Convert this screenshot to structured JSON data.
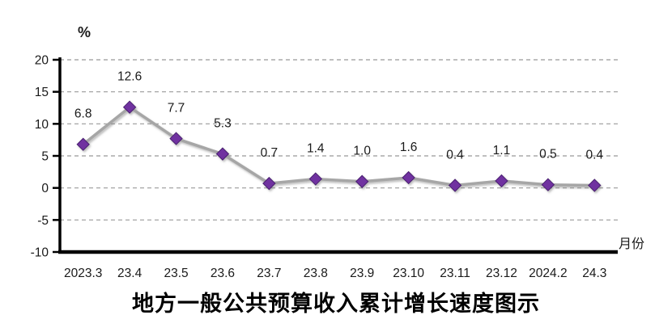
{
  "chart_data": {
    "type": "line",
    "title": "地方一般公共预算收入累计增长速度图示",
    "unit_label": "%",
    "xlabel": "月份",
    "categories": [
      "2023.3",
      "23.4",
      "23.5",
      "23.6",
      "23.7",
      "23.8",
      "23.9",
      "23.10",
      "23.11",
      "23.12",
      "2024.2",
      "24.3"
    ],
    "values": [
      6.8,
      12.6,
      7.7,
      5.3,
      0.7,
      1.4,
      1.0,
      1.6,
      0.4,
      1.1,
      0.5,
      0.4
    ],
    "data_labels": [
      "6.8",
      "12.6",
      "7.7",
      "5.3",
      "0.7",
      "1.4",
      "1.0",
      "1.6",
      "0.4",
      "1.1",
      "0.5",
      "0.4"
    ],
    "ylim": [
      -10,
      20
    ],
    "yticks": [
      20,
      15,
      10,
      5,
      0,
      -5,
      -10
    ],
    "grid": "horizontal-dashed",
    "legend": "none",
    "colors": {
      "line": "#A6A6A6",
      "marker_fill": "#7030A0",
      "marker_border": "#4A2070",
      "gridline": "#999999",
      "axis": "#000000",
      "text": "#1a1a1a"
    }
  }
}
